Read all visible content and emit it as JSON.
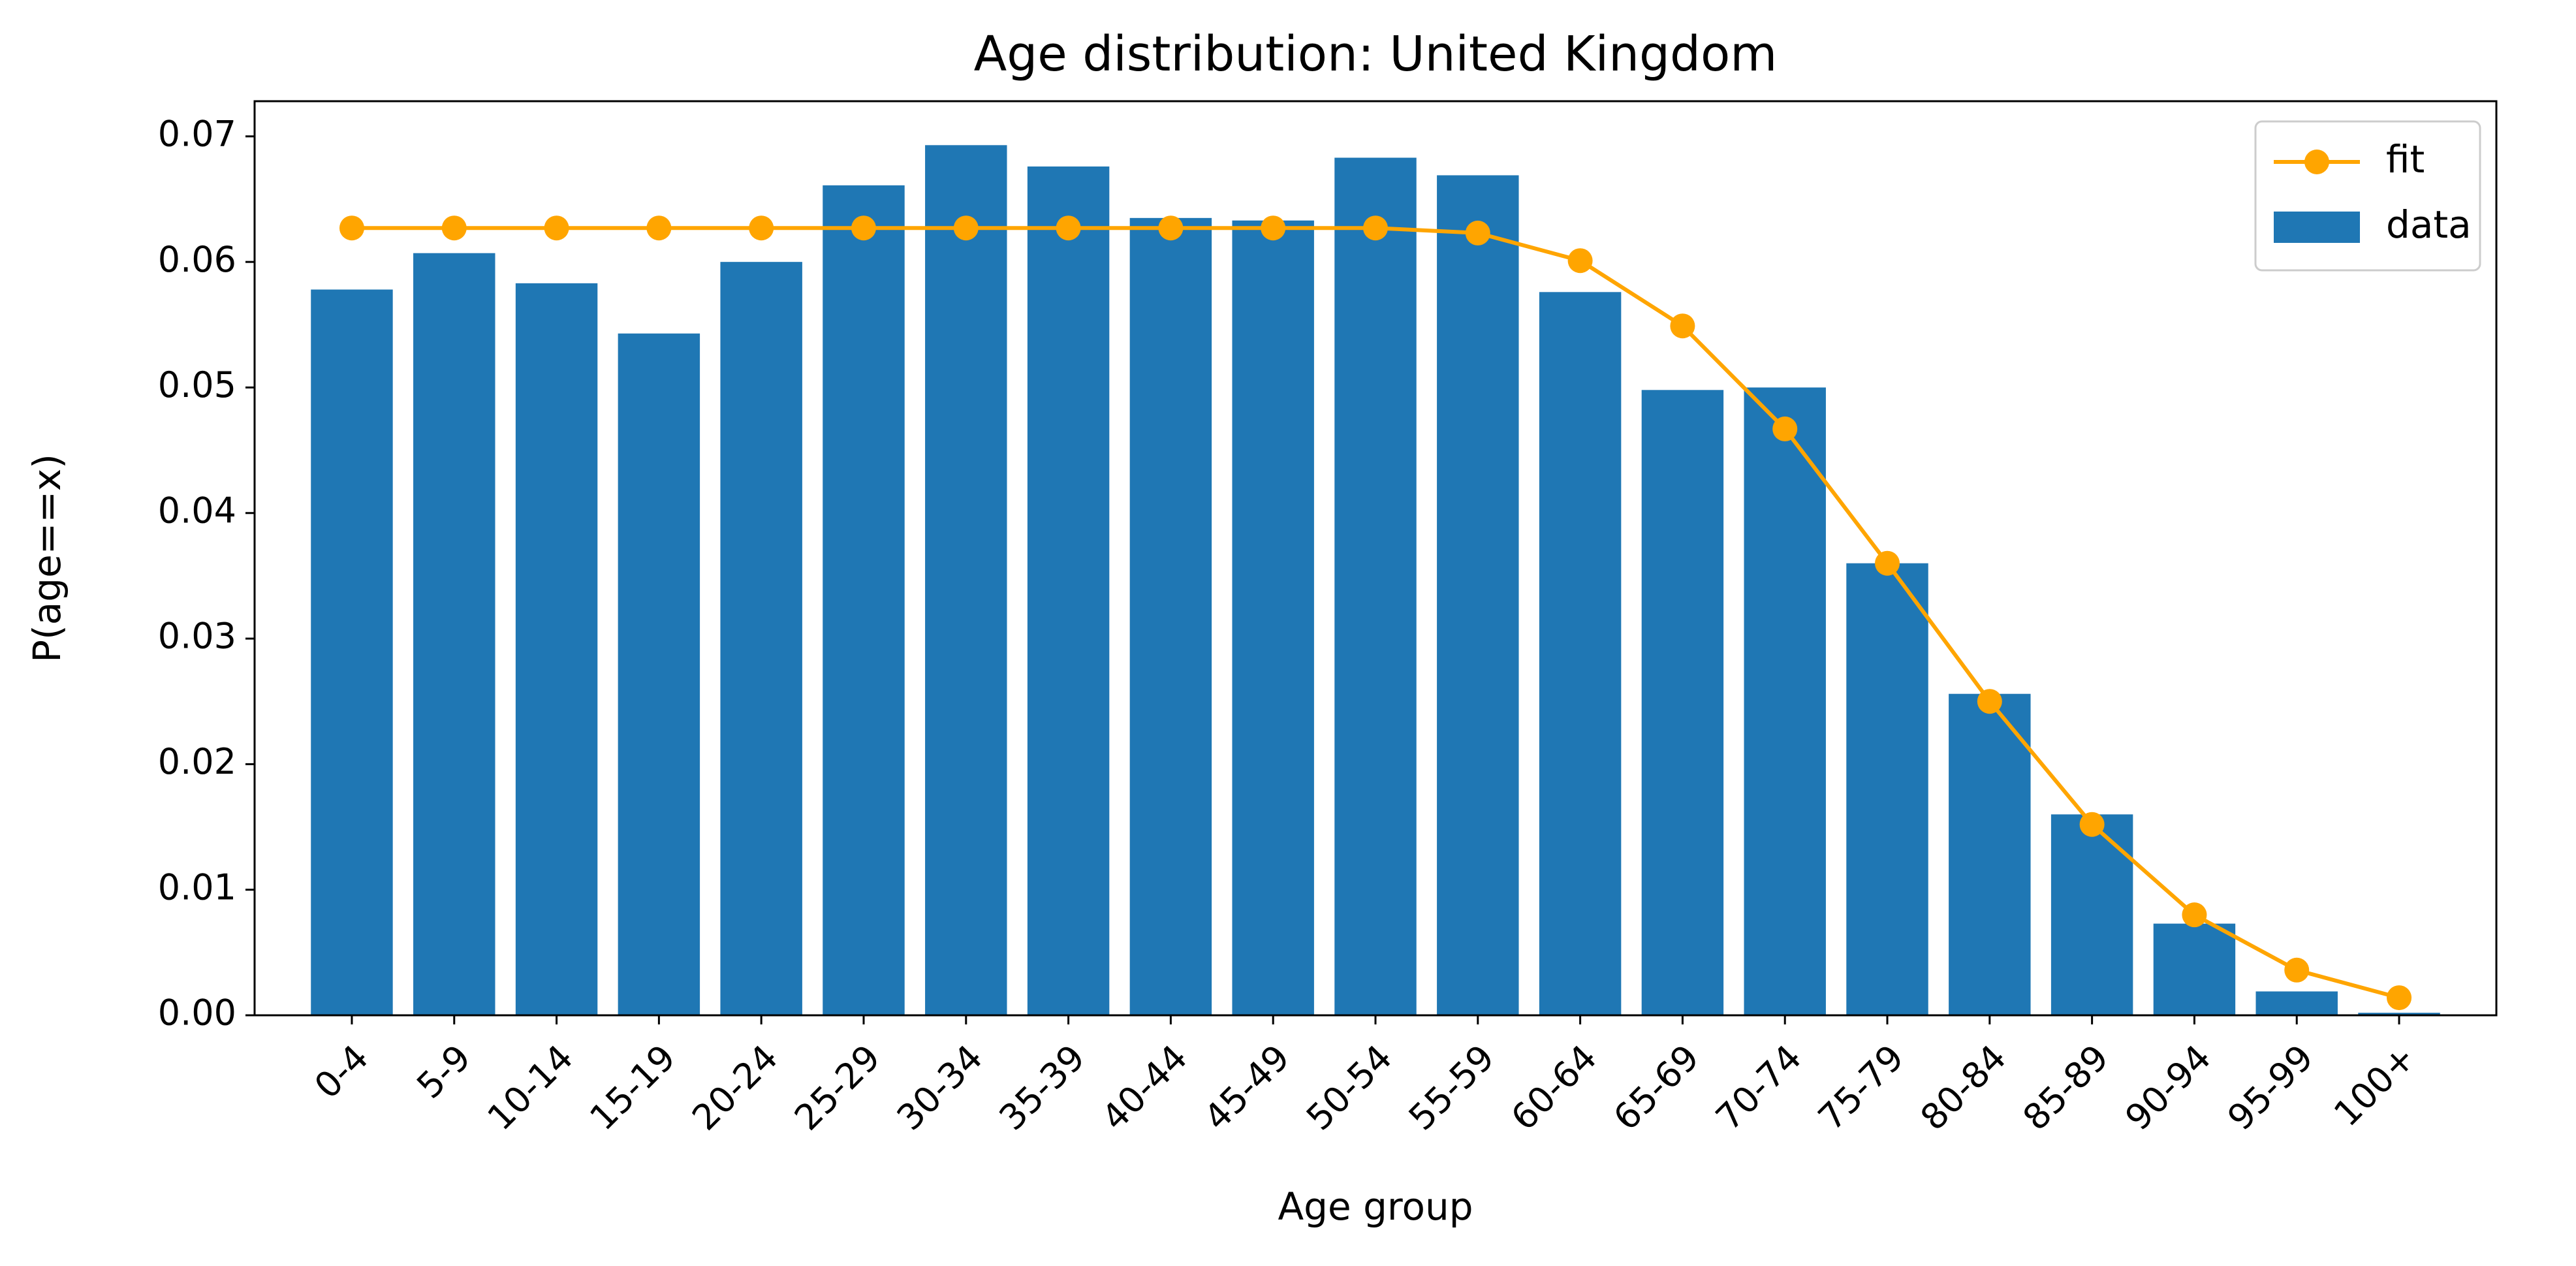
{
  "chart_data": {
    "type": "bar",
    "title": "Age distribution: United Kingdom",
    "xlabel": "Age group",
    "ylabel": "P(age==x)",
    "ylim": [
      0,
      0.0728
    ],
    "yticks": [
      "0.00",
      "0.01",
      "0.02",
      "0.03",
      "0.04",
      "0.05",
      "0.06",
      "0.07"
    ],
    "grid": false,
    "legend_position": "top-right",
    "categories": [
      "0-4",
      "5-9",
      "10-14",
      "15-19",
      "20-24",
      "25-29",
      "30-34",
      "35-39",
      "40-44",
      "45-49",
      "50-54",
      "55-59",
      "60-64",
      "65-69",
      "70-74",
      "75-79",
      "80-84",
      "85-89",
      "90-94",
      "95-99",
      "100+"
    ],
    "series": [
      {
        "name": "fit",
        "kind": "line",
        "color": "#ffa500",
        "marker": "circle",
        "values": [
          0.0627,
          0.0627,
          0.0627,
          0.0627,
          0.0627,
          0.0627,
          0.0627,
          0.0627,
          0.0627,
          0.0627,
          0.0627,
          0.0623,
          0.0601,
          0.0549,
          0.0467,
          0.036,
          0.025,
          0.0152,
          0.008,
          0.0036,
          0.0014
        ]
      },
      {
        "name": "data",
        "kind": "bar",
        "color": "#1f77b4",
        "values": [
          0.0578,
          0.0607,
          0.0583,
          0.0543,
          0.06,
          0.0661,
          0.0693,
          0.0676,
          0.0635,
          0.0633,
          0.0683,
          0.0669,
          0.0576,
          0.0498,
          0.05,
          0.036,
          0.0256,
          0.016,
          0.0073,
          0.0019,
          0.0002
        ]
      }
    ]
  }
}
